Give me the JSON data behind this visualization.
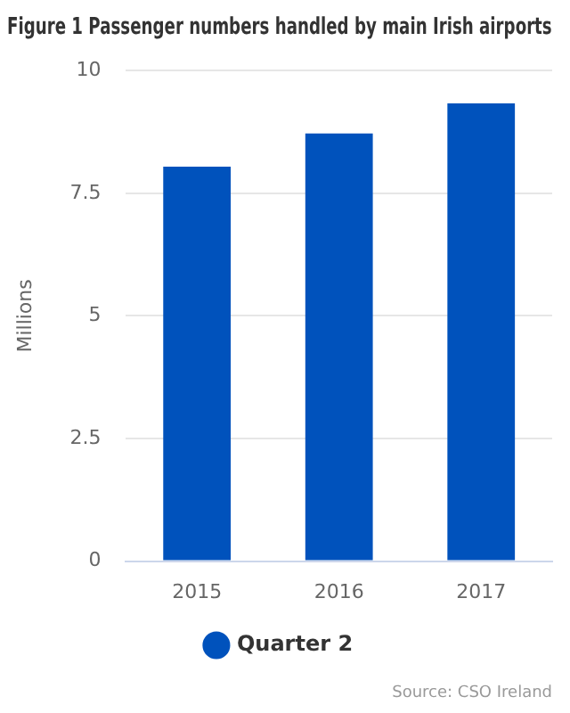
{
  "chart_data": {
    "type": "bar",
    "title": "Figure 1 Passenger numbers handled by main Irish airports",
    "ylabel": "Millions",
    "categories": [
      "2015",
      "2016",
      "2017"
    ],
    "series": [
      {
        "name": "Quarter 2",
        "color": "#0052bc",
        "values": [
          8.04,
          8.72,
          9.33
        ]
      }
    ],
    "ylim": [
      0,
      10
    ],
    "yticks": [
      0,
      {
        "value": 2.5,
        "label": "2.5"
      },
      5,
      {
        "value": 7.5,
        "label": "7.5"
      },
      10
    ],
    "grid": "y",
    "legend": "bottom",
    "annotations": [
      "Source: CSO Ireland"
    ]
  }
}
